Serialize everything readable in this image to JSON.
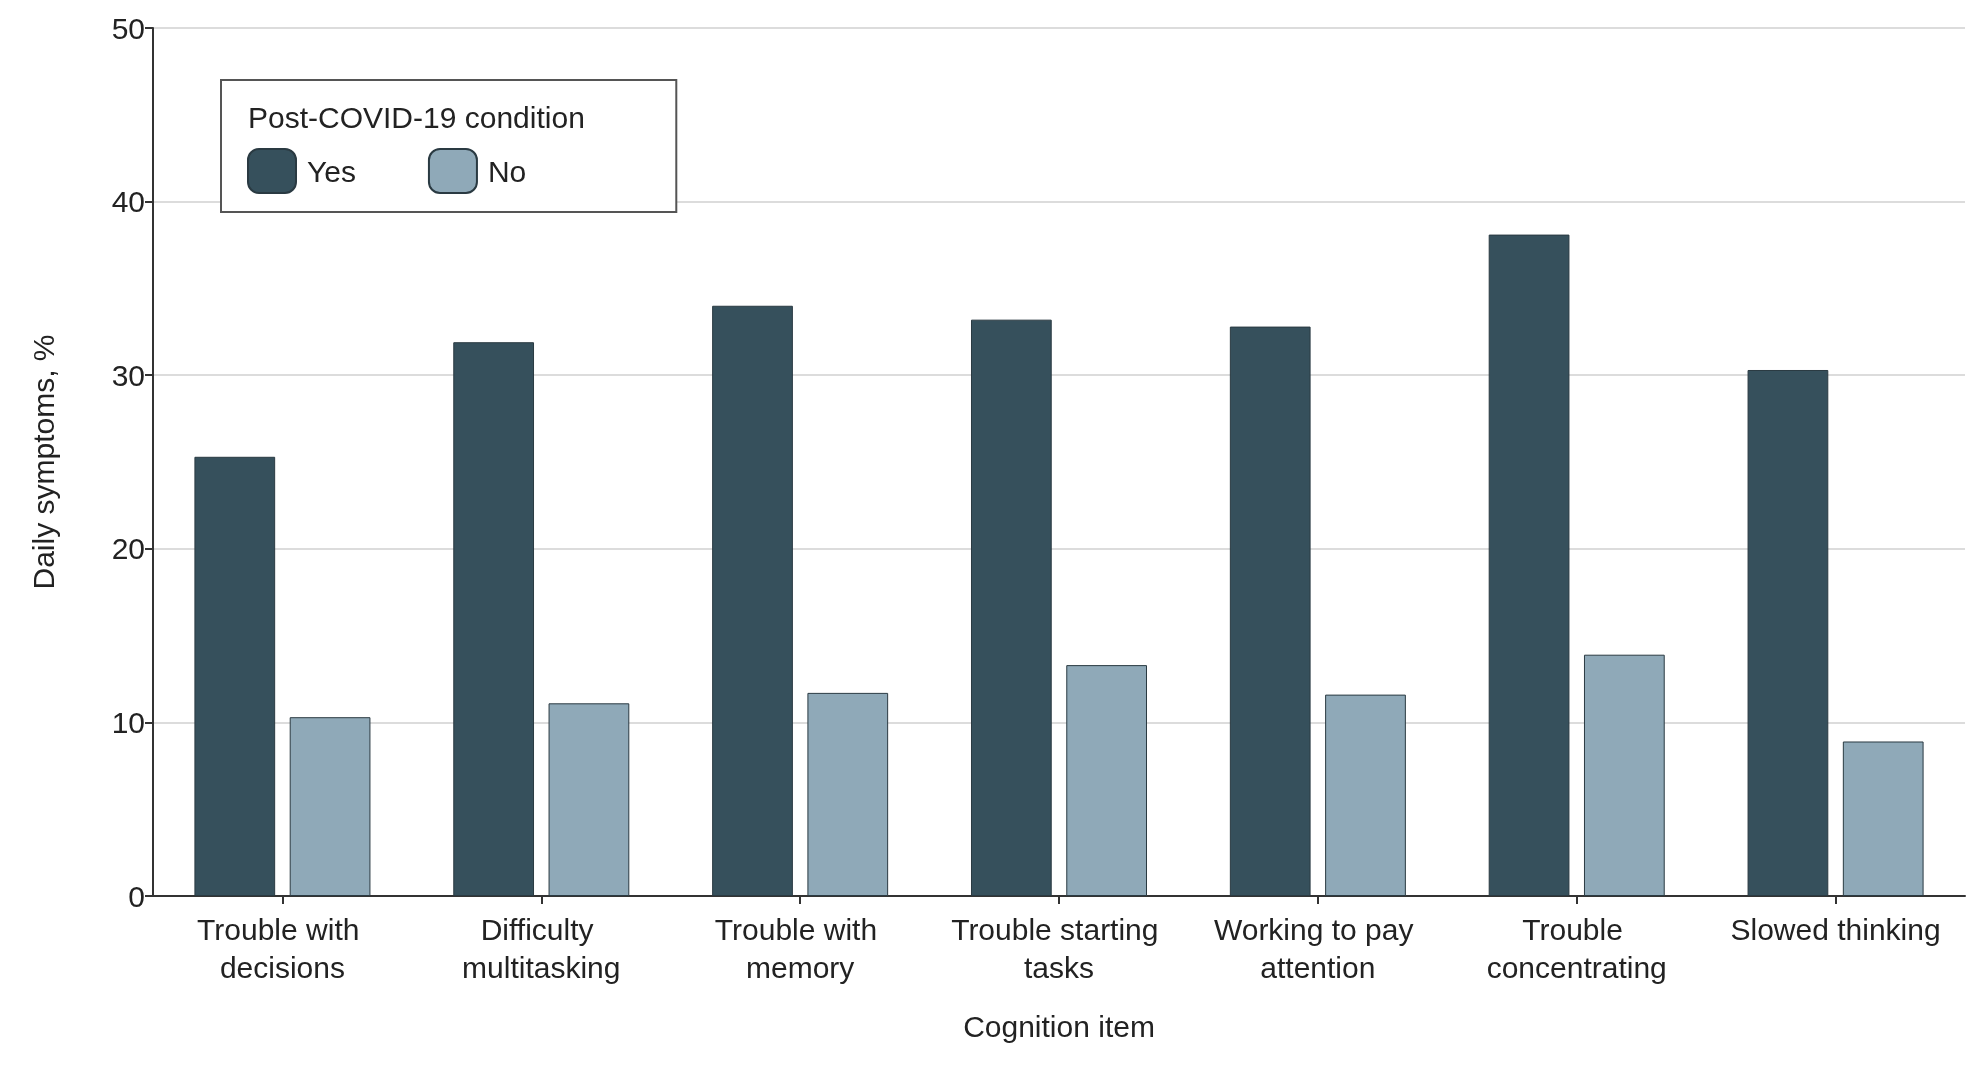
{
  "chart_data": {
    "type": "bar",
    "xlabel": "Cognition item",
    "ylabel": "Daily symptoms, %",
    "legend_title": "Post-COVID-19 condition",
    "categories": [
      "Trouble with decisions",
      "Difficulty multitasking",
      "Trouble with memory",
      "Trouble starting tasks",
      "Working to pay attention",
      "Trouble concentrating",
      "Slowed thinking"
    ],
    "series": [
      {
        "name": "Yes",
        "color": "#36505c",
        "values": [
          25.3,
          31.9,
          34.0,
          33.2,
          32.8,
          38.1,
          30.3
        ]
      },
      {
        "name": "No",
        "color": "#8fa9b8",
        "values": [
          10.3,
          11.1,
          11.7,
          13.3,
          11.6,
          13.9,
          8.9
        ]
      }
    ],
    "ylim": [
      0,
      50
    ],
    "yticks": [
      0,
      10,
      20,
      30,
      40,
      50
    ],
    "grid": "y",
    "legend": "top left"
  }
}
